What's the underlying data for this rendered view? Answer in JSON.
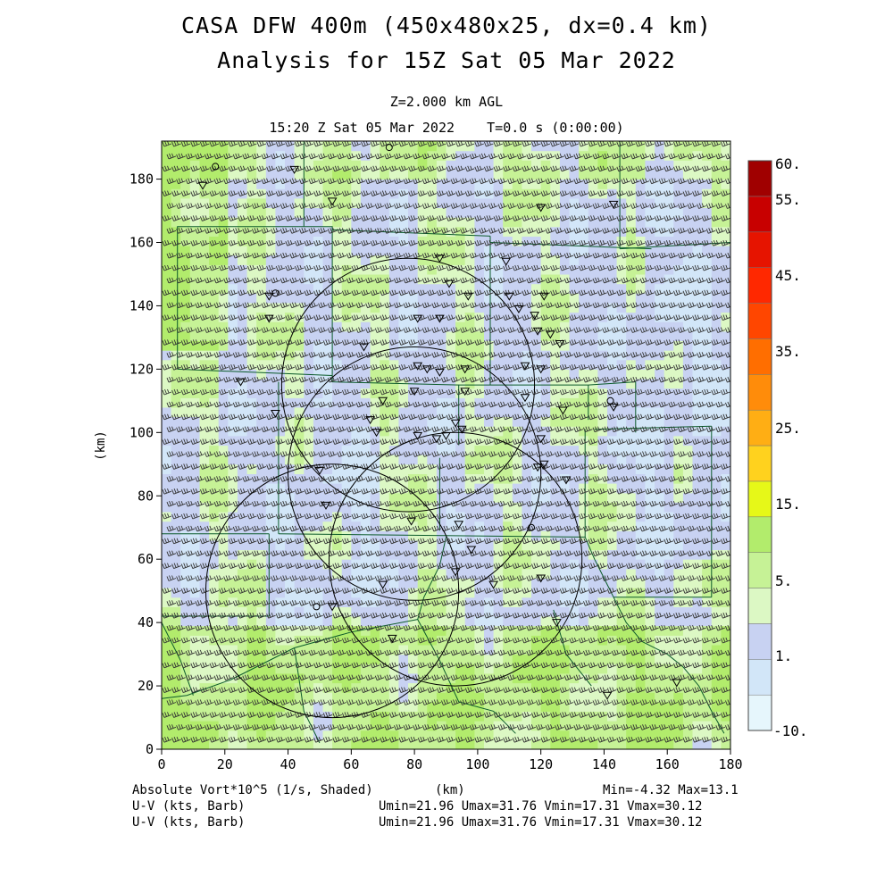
{
  "header": {
    "title_line1": "CASA DFW 400m (450x480x25, dx=0.4 km)",
    "title_line2": "Analysis for 15Z Sat 05 Mar 2022",
    "level": "Z=2.000 km AGL",
    "valid_time": "15:20 Z Sat 05 Mar 2022    T=0.0 s (0:00:00)"
  },
  "footer": {
    "field_label": "Absolute Vort*10^5 (1/s, Shaded)",
    "xunit_label": "(km)",
    "field_range": "Min=-4.32 Max=13.1",
    "wind1_label": "U-V (kts, Barb)",
    "wind1_range": "Umin=21.96 Umax=31.76 Vmin=17.31 Vmax=30.12",
    "wind2_label": "U-V (kts, Barb)",
    "wind2_range": "Umin=21.96 Umax=31.76 Vmin=17.31 Vmax=30.12"
  },
  "colorbar": {
    "labels": [
      "60.",
      "55.",
      "45.",
      "35.",
      "25.",
      "15.",
      "5.",
      "1.",
      "-10."
    ],
    "colors": [
      "#e6f6fc",
      "#d2e6f8",
      "#c8d2f2",
      "#dcf8c4",
      "#c6f296",
      "#b2ec6c",
      "#e6f818",
      "#ffd21e",
      "#ffae14",
      "#ff8c0a",
      "#ff6e00",
      "#ff4600",
      "#ff2800",
      "#e61400",
      "#c80000",
      "#a00000"
    ]
  },
  "chart_data": {
    "type": "heatmap",
    "title": "CASA DFW 400m (450x480x25, dx=0.4 km)",
    "subtitle": "Analysis for 15Z Sat 05 Mar 2022",
    "field": "Absolute Vort*10^5 (1/s, Shaded)",
    "field_min": -4.32,
    "field_max": 13.1,
    "xlabel": "(km)",
    "ylabel": "(km)",
    "xlim": [
      0,
      180
    ],
    "ylim": [
      0,
      192
    ],
    "x_ticks": [
      0,
      20,
      40,
      60,
      80,
      100,
      120,
      140,
      160,
      180
    ],
    "y_ticks": [
      0,
      20,
      40,
      60,
      80,
      100,
      120,
      140,
      160,
      180
    ],
    "colorbar_levels": [
      "-10.",
      "1.",
      "5.",
      "15.",
      "25.",
      "35.",
      "45.",
      "55.",
      "60."
    ],
    "radar_rings": [
      {
        "x": 78,
        "y": 115,
        "r": 40
      },
      {
        "x": 80,
        "y": 87,
        "r": 40
      },
      {
        "x": 93,
        "y": 60,
        "r": 40
      },
      {
        "x": 54,
        "y": 50,
        "r": 40
      }
    ],
    "wind": {
      "umin": 21.96,
      "umax": 31.76,
      "vmin": 17.31,
      "vmax": 30.12,
      "units": "kts"
    },
    "grid": false
  }
}
